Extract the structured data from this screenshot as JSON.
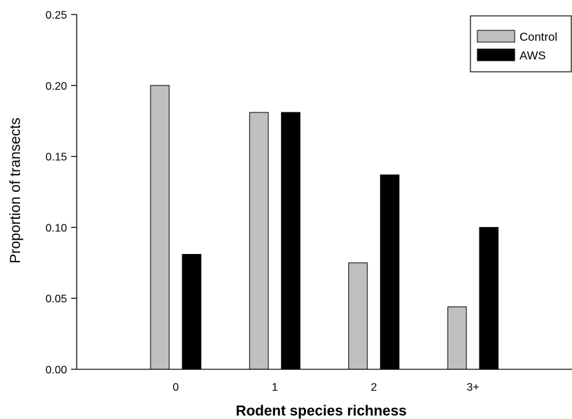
{
  "chart_data": {
    "type": "bar",
    "categories": [
      "0",
      "1",
      "2",
      "3+"
    ],
    "series": [
      {
        "name": "Control",
        "values": [
          0.2,
          0.181,
          0.075,
          0.044
        ],
        "color": "#c0c0c0"
      },
      {
        "name": "AWS",
        "values": [
          0.081,
          0.181,
          0.137,
          0.1
        ],
        "color": "#000000"
      }
    ],
    "xlabel": "Rodent species richness",
    "ylabel": "Proportion of transects",
    "ylim": [
      0,
      0.25
    ],
    "yticks": [
      "0.00",
      "0.05",
      "0.10",
      "0.15",
      "0.20",
      "0.25"
    ],
    "grid": false,
    "legend_position": "top-right"
  }
}
